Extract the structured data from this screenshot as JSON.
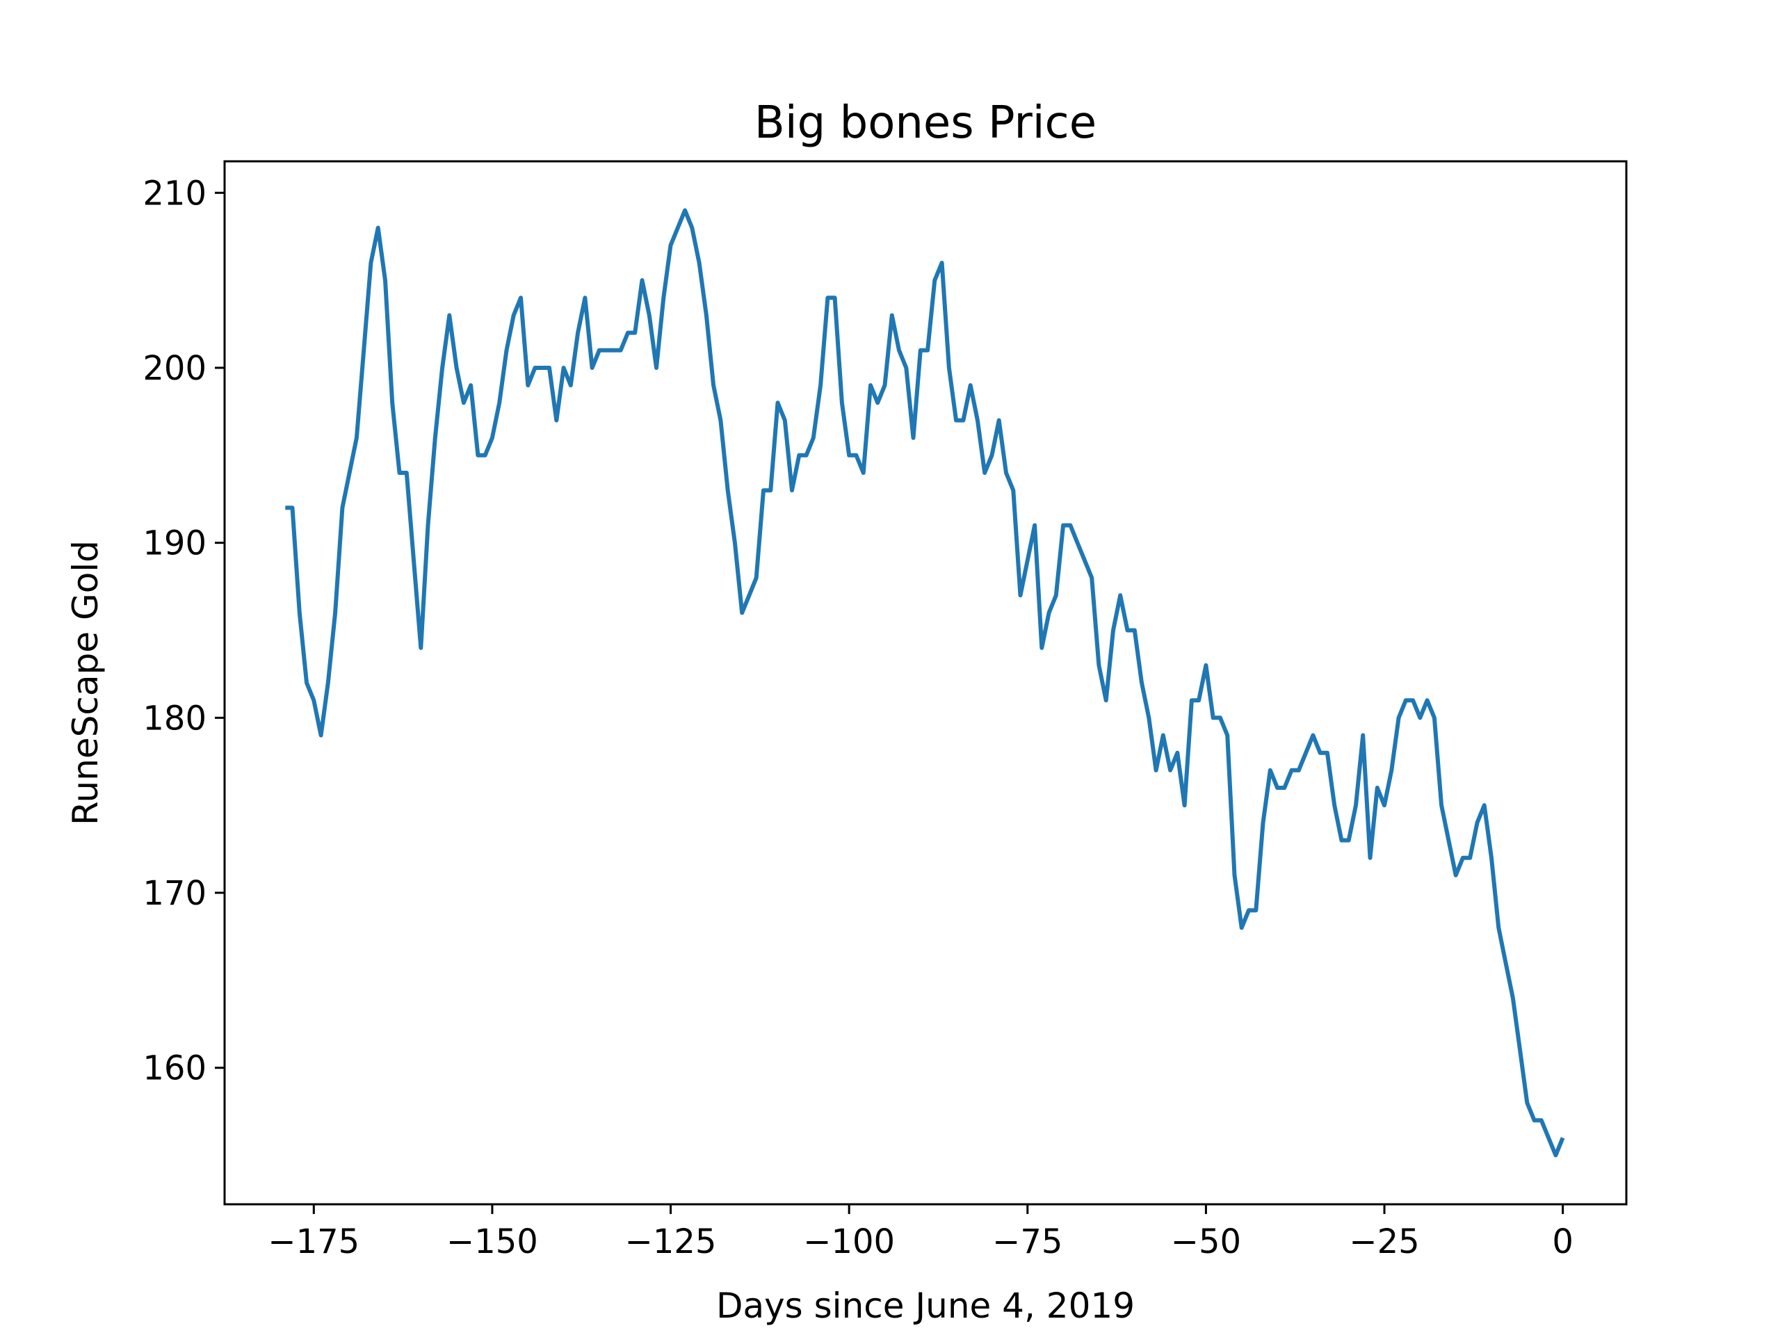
{
  "chart_data": {
    "type": "line",
    "title": "Big bones Price",
    "xlabel": "Days since June 4, 2019",
    "ylabel": "RuneScape Gold",
    "xlim": [
      -187.5,
      8.9
    ],
    "ylim": [
      152.2,
      211.8
    ],
    "xticks": [
      -175,
      -150,
      -125,
      -100,
      -75,
      -50,
      -25,
      0
    ],
    "xtick_labels": [
      "−175",
      "−150",
      "−125",
      "−100",
      "−75",
      "−50",
      "−25",
      "0"
    ],
    "yticks": [
      160,
      170,
      180,
      190,
      200,
      210
    ],
    "ytick_labels": [
      "160",
      "170",
      "180",
      "190",
      "200",
      "210"
    ],
    "grid": false,
    "color": "#1f77b4",
    "series": [
      {
        "x": [
          -179,
          -178,
          -177,
          -176,
          -175,
          -174,
          -173,
          -172,
          -171,
          -170,
          -169,
          -168,
          -167,
          -166,
          -165,
          -164,
          -163,
          -162,
          -161,
          -160,
          -159,
          -158,
          -157,
          -156,
          -155,
          -154,
          -153,
          -152,
          -151,
          -150,
          -149,
          -148,
          -147,
          -146,
          -145,
          -144,
          -143,
          -142,
          -141,
          -140,
          -139,
          -138,
          -137,
          -136,
          -135,
          -134,
          -133,
          -132,
          -131,
          -130,
          -129,
          -128,
          -127,
          -126,
          -125,
          -124,
          -123,
          -122,
          -121,
          -120,
          -119,
          -118,
          -117,
          -116,
          -115,
          -114,
          -113,
          -112,
          -111,
          -110,
          -109,
          -108,
          -107,
          -106,
          -105,
          -104,
          -103,
          -102,
          -101,
          -100,
          -99,
          -98,
          -97,
          -96,
          -95,
          -94,
          -93,
          -92,
          -91,
          -90,
          -89,
          -88,
          -87,
          -86,
          -85,
          -84,
          -83,
          -82,
          -81,
          -80,
          -79,
          -78,
          -77,
          -76,
          -75,
          -74,
          -73,
          -72,
          -71,
          -70,
          -69,
          -68,
          -67,
          -66,
          -65,
          -64,
          -63,
          -62,
          -61,
          -60,
          -59,
          -58,
          -57,
          -56,
          -55,
          -54,
          -53,
          -52,
          -51,
          -50,
          -49,
          -48,
          -47,
          -46,
          -45,
          -44,
          -43,
          -42,
          -41,
          -40,
          -39,
          -38,
          -37,
          -36,
          -35,
          -34,
          -33,
          -32,
          -31,
          -30,
          -29,
          -28,
          -27,
          -26,
          -25,
          -24,
          -23,
          -22,
          -21,
          -20,
          -19,
          -18,
          -17,
          -16,
          -15,
          -14,
          -13,
          -12,
          -11,
          -10,
          -9,
          -8,
          -7,
          -6,
          -5,
          -4,
          -3,
          -2,
          -1,
          0
        ],
        "values": [
          192,
          192,
          186,
          182,
          181,
          179,
          182,
          186,
          192,
          194,
          196,
          201,
          206,
          208,
          205,
          198,
          194,
          194,
          189,
          184,
          191,
          196,
          200,
          203,
          200,
          198,
          199,
          195,
          195,
          196,
          198,
          201,
          203,
          204,
          199,
          200,
          200,
          200,
          197,
          200,
          199,
          202,
          204,
          200,
          201,
          201,
          201,
          201,
          202,
          202,
          205,
          203,
          200,
          204,
          207,
          208,
          209,
          208,
          206,
          203,
          199,
          197,
          193,
          190,
          186,
          187,
          188,
          193,
          193,
          198,
          197,
          193,
          195,
          195,
          196,
          199,
          204,
          204,
          198,
          195,
          195,
          194,
          199,
          198,
          199,
          203,
          201,
          200,
          196,
          201,
          201,
          205,
          206,
          200,
          197,
          197,
          199,
          197,
          194,
          195,
          197,
          194,
          193,
          187,
          189,
          191,
          184,
          186,
          187,
          191,
          191,
          190,
          189,
          188,
          183,
          181,
          185,
          187,
          185,
          185,
          182,
          180,
          177,
          179,
          177,
          178,
          175,
          181,
          181,
          183,
          180,
          180,
          179,
          171,
          168,
          169,
          169,
          174,
          177,
          176,
          176,
          177,
          177,
          178,
          179,
          178,
          178,
          175,
          173,
          173,
          175,
          179,
          172,
          176,
          175,
          177,
          180,
          181,
          181,
          180,
          181,
          180,
          175,
          173,
          171,
          172,
          172,
          174,
          175,
          172,
          168,
          166,
          164,
          161,
          158,
          157,
          157,
          156,
          155,
          156
        ]
      }
    ]
  }
}
